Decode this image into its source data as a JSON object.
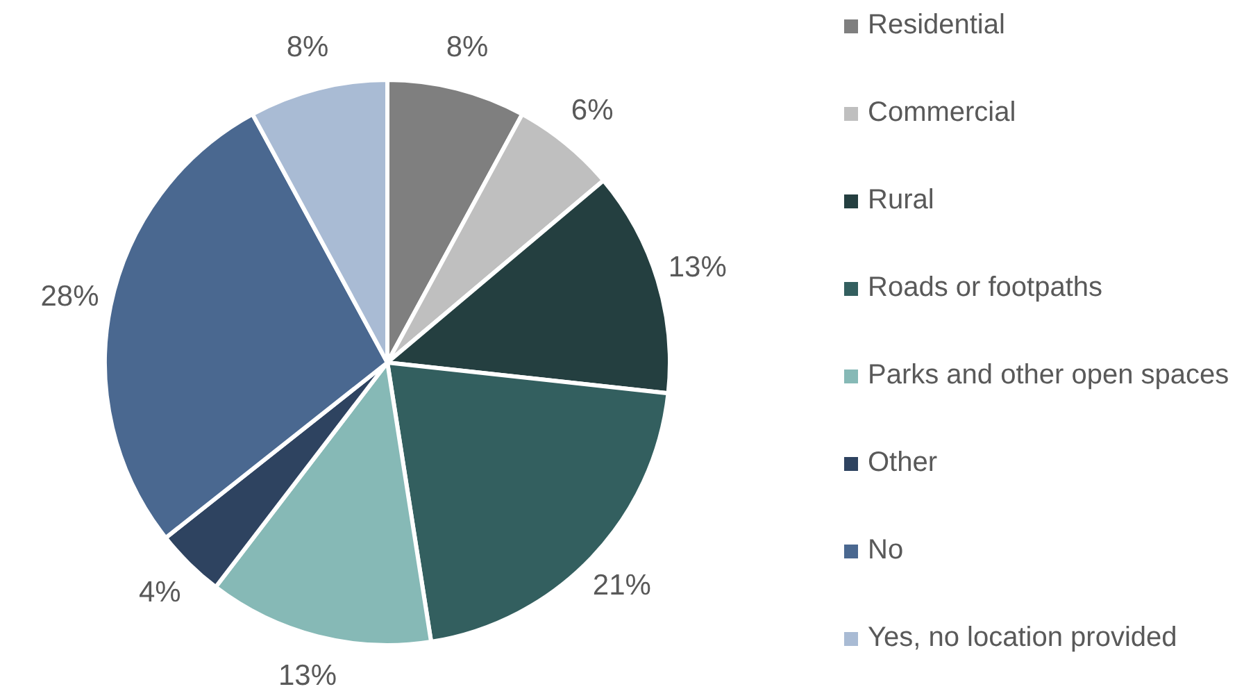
{
  "chart_data": {
    "type": "pie",
    "categories": [
      "Residential",
      "Commercial",
      "Rural",
      "Roads or footpaths",
      "Parks and other open spaces",
      "Other",
      "No",
      "Yes, no location provided"
    ],
    "values": [
      8,
      6,
      13,
      21,
      13,
      4,
      28,
      8
    ],
    "colors": [
      "#7f7f7f",
      "#bfbfbf",
      "#243f40",
      "#335f5f",
      "#86b9b6",
      "#2e4360",
      "#4a6890",
      "#a9bbd4"
    ],
    "value_labels": [
      "8%",
      "6%",
      "13%",
      "21%",
      "13%",
      "4%",
      "28%",
      "8%"
    ],
    "legend": "right"
  }
}
